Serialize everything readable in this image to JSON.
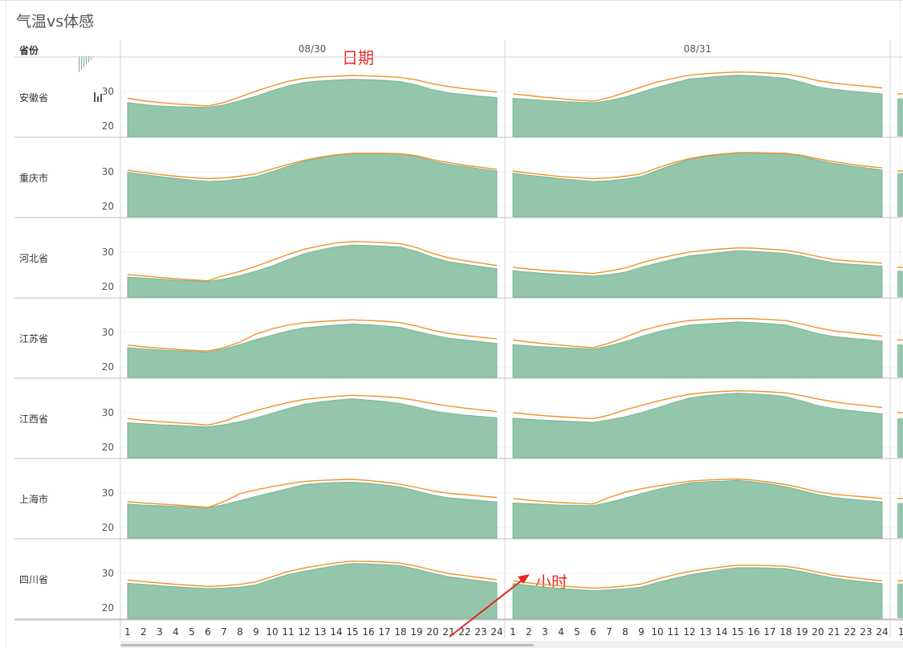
{
  "title": "气温vs体感",
  "province_header": "省份",
  "dates": [
    "08/30",
    "08/31"
  ],
  "annotations": {
    "date": "日期",
    "hour": "小时"
  },
  "y_ticks": [
    "30",
    "20"
  ],
  "hours": [
    "1",
    "2",
    "3",
    "4",
    "5",
    "6",
    "7",
    "8",
    "9",
    "10",
    "11",
    "12",
    "13",
    "14",
    "15",
    "16",
    "17",
    "18",
    "19",
    "20",
    "21",
    "22",
    "23",
    "24"
  ],
  "colors": {
    "temperature_fill": "#93c6ab",
    "temperature_line": "#7cb592",
    "feels_like_line": "#f0922b",
    "annotation": "#e8281f"
  },
  "chart_data": {
    "type": "area",
    "title": "气温vs体感",
    "xlabel": "小时",
    "ylabel": "",
    "ylim": [
      17,
      39
    ],
    "facets": {
      "rows": "省份",
      "columns": "日期"
    },
    "provinces": [
      {
        "name": "安徽省",
        "temperature": {
          "08/30": [
            26.8,
            26.2,
            25.8,
            25.6,
            25.5,
            25.4,
            26.1,
            27.3,
            28.6,
            30.2,
            31.6,
            32.6,
            33.0,
            33.3,
            33.5,
            33.4,
            33.2,
            32.8,
            31.9,
            30.5,
            29.6,
            29.1,
            28.6,
            28.2
          ],
          "08/31": [
            28.0,
            27.7,
            27.4,
            27.1,
            26.9,
            26.7,
            27.4,
            28.4,
            29.8,
            31.2,
            32.4,
            33.6,
            34.0,
            34.4,
            34.7,
            34.5,
            34.2,
            33.8,
            32.7,
            31.3,
            30.6,
            30.1,
            29.7,
            29.3
          ]
        },
        "feels_like": {
          "08/30": [
            28.0,
            27.3,
            26.8,
            26.4,
            26.1,
            25.8,
            26.8,
            28.4,
            30.1,
            31.6,
            32.9,
            33.8,
            34.2,
            34.4,
            34.6,
            34.5,
            34.3,
            34.0,
            33.3,
            32.2,
            31.4,
            30.8,
            30.3,
            29.8
          ],
          "08/31": [
            29.3,
            28.8,
            28.3,
            27.9,
            27.5,
            27.2,
            28.2,
            29.7,
            31.3,
            32.7,
            33.8,
            34.7,
            35.1,
            35.4,
            35.6,
            35.5,
            35.3,
            35.0,
            34.2,
            33.1,
            32.4,
            31.9,
            31.5,
            31.0
          ]
        }
      },
      {
        "name": "重庆市",
        "temperature": {
          "08/30": [
            29.8,
            29.2,
            28.6,
            28.1,
            27.6,
            27.2,
            27.4,
            27.9,
            28.6,
            30.0,
            31.6,
            33.0,
            34.0,
            34.8,
            35.2,
            35.2,
            35.2,
            35.1,
            34.4,
            33.1,
            32.1,
            31.5,
            30.8,
            30.2
          ],
          "08/31": [
            29.6,
            29.0,
            28.5,
            28.0,
            27.6,
            27.2,
            27.4,
            27.9,
            28.6,
            30.4,
            32.1,
            33.6,
            34.4,
            35.0,
            35.4,
            35.4,
            35.3,
            35.2,
            34.5,
            33.3,
            32.4,
            31.7,
            31.1,
            30.5
          ]
        },
        "feels_like": {
          "08/30": [
            30.4,
            29.8,
            29.2,
            28.7,
            28.3,
            28.0,
            28.2,
            28.7,
            29.4,
            30.8,
            32.1,
            33.3,
            34.2,
            34.9,
            35.3,
            35.3,
            35.3,
            35.2,
            34.6,
            33.5,
            32.6,
            31.9,
            31.3,
            30.7
          ],
          "08/31": [
            30.2,
            29.6,
            29.1,
            28.6,
            28.3,
            28.0,
            28.2,
            28.7,
            29.4,
            31.1,
            32.6,
            33.8,
            34.6,
            35.1,
            35.5,
            35.5,
            35.4,
            35.3,
            34.7,
            33.7,
            32.9,
            32.2,
            31.6,
            31.1
          ]
        }
      },
      {
        "name": "河北省",
        "temperature": {
          "08/30": [
            22.8,
            22.5,
            22.2,
            21.9,
            21.7,
            21.5,
            22.2,
            23.2,
            24.5,
            26.0,
            27.8,
            29.5,
            30.6,
            31.5,
            32.0,
            31.9,
            31.7,
            31.4,
            30.2,
            28.5,
            27.2,
            26.5,
            25.8,
            25.2
          ],
          "08/31": [
            24.6,
            24.2,
            23.8,
            23.5,
            23.3,
            23.1,
            23.5,
            24.2,
            25.6,
            26.8,
            27.9,
            28.9,
            29.4,
            29.9,
            30.4,
            30.2,
            29.9,
            29.6,
            28.8,
            27.8,
            26.9,
            26.5,
            26.2,
            25.9
          ]
        },
        "feels_like": {
          "08/30": [
            23.5,
            23.1,
            22.7,
            22.3,
            22.0,
            21.7,
            23.2,
            24.4,
            25.9,
            27.6,
            29.3,
            30.8,
            31.8,
            32.6,
            33.0,
            32.9,
            32.7,
            32.4,
            31.3,
            29.6,
            28.3,
            27.5,
            26.8,
            26.1
          ],
          "08/31": [
            25.6,
            25.1,
            24.7,
            24.4,
            24.1,
            23.8,
            24.5,
            25.4,
            26.9,
            28.1,
            29.1,
            30.0,
            30.5,
            30.9,
            31.2,
            31.1,
            30.8,
            30.5,
            29.7,
            28.7,
            27.8,
            27.4,
            27.1,
            26.8
          ]
        }
      },
      {
        "name": "江苏省",
        "temperature": {
          "08/30": [
            25.6,
            25.2,
            24.9,
            24.7,
            24.5,
            24.3,
            25.2,
            26.5,
            27.9,
            29.2,
            30.4,
            31.3,
            31.7,
            32.1,
            32.4,
            32.2,
            31.9,
            31.4,
            30.3,
            29.2,
            28.3,
            27.8,
            27.3,
            26.8
          ],
          "08/31": [
            26.5,
            26.1,
            25.8,
            25.6,
            25.4,
            25.2,
            26.1,
            27.3,
            28.8,
            30.1,
            31.2,
            32.1,
            32.4,
            32.7,
            33.0,
            32.8,
            32.5,
            32.1,
            30.9,
            29.6,
            28.8,
            28.3,
            27.9,
            27.4
          ]
        },
        "feels_like": {
          "08/30": [
            26.3,
            25.8,
            25.4,
            25.1,
            24.8,
            24.6,
            25.6,
            27.2,
            29.5,
            31.0,
            32.1,
            32.8,
            33.1,
            33.4,
            33.6,
            33.4,
            33.2,
            32.8,
            31.8,
            30.6,
            29.7,
            29.1,
            28.6,
            28.1
          ],
          "08/31": [
            27.8,
            27.2,
            26.7,
            26.3,
            25.9,
            25.6,
            26.9,
            28.6,
            30.4,
            31.7,
            32.7,
            33.4,
            33.7,
            33.9,
            34.0,
            33.9,
            33.7,
            33.4,
            32.4,
            31.3,
            30.4,
            29.9,
            29.4,
            28.9
          ]
        }
      },
      {
        "name": "江西省",
        "temperature": {
          "08/30": [
            27.1,
            26.8,
            26.5,
            26.3,
            26.1,
            25.9,
            26.5,
            27.4,
            28.5,
            29.8,
            31.2,
            32.4,
            33.1,
            33.6,
            34.0,
            33.6,
            33.2,
            32.6,
            31.6,
            30.5,
            29.8,
            29.3,
            28.9,
            28.5
          ],
          "08/31": [
            28.4,
            28.1,
            27.8,
            27.6,
            27.4,
            27.2,
            27.9,
            28.8,
            30.0,
            31.4,
            32.9,
            34.2,
            34.9,
            35.3,
            35.6,
            35.4,
            35.1,
            34.6,
            33.4,
            32.0,
            31.2,
            30.6,
            30.1,
            29.6
          ]
        },
        "feels_like": {
          "08/30": [
            28.3,
            27.8,
            27.4,
            27.1,
            26.8,
            26.4,
            27.5,
            29.2,
            30.6,
            31.8,
            32.9,
            33.8,
            34.3,
            34.7,
            35.0,
            34.8,
            34.6,
            34.2,
            33.5,
            32.6,
            31.9,
            31.3,
            30.8,
            30.3
          ],
          "08/31": [
            30.0,
            29.5,
            29.1,
            28.8,
            28.5,
            28.2,
            29.3,
            30.8,
            32.1,
            33.3,
            34.4,
            35.3,
            35.8,
            36.1,
            36.3,
            36.2,
            36.0,
            35.7,
            34.9,
            33.9,
            33.1,
            32.5,
            32.0,
            31.5
          ]
        }
      },
      {
        "name": "上海市",
        "temperature": {
          "08/30": [
            26.8,
            26.5,
            26.3,
            26.1,
            25.9,
            25.7,
            26.6,
            27.8,
            29.0,
            30.1,
            31.3,
            32.4,
            32.8,
            33.0,
            33.1,
            32.8,
            32.3,
            31.7,
            30.6,
            29.4,
            28.6,
            28.2,
            27.8,
            27.4
          ],
          "08/31": [
            27.1,
            26.9,
            26.7,
            26.5,
            26.4,
            26.3,
            27.3,
            28.5,
            29.8,
            31.0,
            32.0,
            32.9,
            33.2,
            33.4,
            33.6,
            33.2,
            32.6,
            31.8,
            30.7,
            29.5,
            28.7,
            28.2,
            27.8,
            27.4
          ]
        },
        "feels_like": {
          "08/30": [
            27.5,
            27.1,
            26.8,
            26.5,
            26.2,
            25.8,
            27.5,
            29.8,
            30.9,
            31.8,
            32.6,
            33.3,
            33.6,
            33.8,
            33.9,
            33.6,
            33.1,
            32.5,
            31.6,
            30.6,
            29.9,
            29.5,
            29.1,
            28.7
          ],
          "08/31": [
            28.4,
            27.9,
            27.5,
            27.2,
            27.0,
            26.8,
            28.7,
            30.2,
            31.2,
            32.0,
            32.7,
            33.4,
            33.7,
            33.9,
            34.0,
            33.7,
            33.1,
            32.4,
            31.4,
            30.3,
            29.6,
            29.2,
            28.8,
            28.4
          ]
        }
      },
      {
        "name": "四川省",
        "temperature": {
          "08/30": [
            27.1,
            26.8,
            26.4,
            26.1,
            25.8,
            25.6,
            25.7,
            26.0,
            26.6,
            28.2,
            29.6,
            30.6,
            31.4,
            32.2,
            32.8,
            32.7,
            32.5,
            32.2,
            31.2,
            30.0,
            29.0,
            28.4,
            27.8,
            27.2
          ],
          "08/31": [
            27.0,
            26.5,
            26.0,
            25.6,
            25.3,
            25.0,
            25.2,
            25.5,
            26.0,
            27.3,
            28.5,
            29.5,
            30.3,
            31.0,
            31.6,
            31.6,
            31.5,
            31.3,
            30.5,
            29.5,
            28.6,
            28.0,
            27.5,
            27.0
          ]
        },
        "feels_like": {
          "08/30": [
            28.0,
            27.6,
            27.2,
            26.8,
            26.5,
            26.2,
            26.4,
            26.8,
            27.5,
            29.0,
            30.5,
            31.5,
            32.3,
            33.0,
            33.5,
            33.4,
            33.2,
            32.9,
            32.0,
            30.9,
            29.9,
            29.3,
            28.7,
            28.1
          ],
          "08/31": [
            27.8,
            27.2,
            26.7,
            26.3,
            26.0,
            25.7,
            25.9,
            26.3,
            26.9,
            28.3,
            29.5,
            30.5,
            31.2,
            31.8,
            32.3,
            32.3,
            32.2,
            32.0,
            31.3,
            30.3,
            29.4,
            28.8,
            28.3,
            27.8
          ]
        }
      }
    ]
  }
}
